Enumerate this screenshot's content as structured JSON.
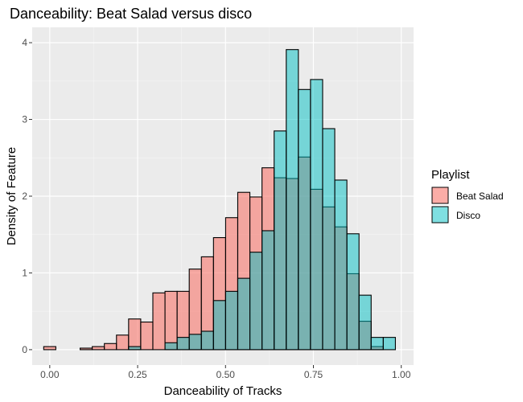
{
  "chart_data": {
    "type": "bar",
    "subtype": "overlapping-histogram",
    "title": "Danceability: Beat Salad versus disco",
    "xlabel": "Danceability of Tracks",
    "ylabel": "Density of Feature",
    "xlim": [
      -0.05,
      1.035
    ],
    "ylim": [
      -0.2,
      4.2
    ],
    "x_ticks": [
      0.0,
      0.25,
      0.5,
      0.75,
      1.0
    ],
    "x_tick_labels": [
      "0.00",
      "0.25",
      "0.50",
      "0.75",
      "1.00"
    ],
    "y_ticks": [
      0,
      1,
      2,
      3,
      4
    ],
    "y_tick_labels": [
      "0",
      "1",
      "2",
      "3",
      "4"
    ],
    "bin_width": 0.0345,
    "bin_starts": [
      -0.0172,
      0.0173,
      0.0518,
      0.0863,
      0.1208,
      0.1553,
      0.1898,
      0.2243,
      0.2588,
      0.2933,
      0.3278,
      0.3623,
      0.3968,
      0.4313,
      0.4658,
      0.5003,
      0.5348,
      0.5693,
      0.6038,
      0.6383,
      0.6728,
      0.7073,
      0.7418,
      0.7763,
      0.8108,
      0.8453,
      0.8798,
      0.9143,
      0.9488
    ],
    "grid": true,
    "legend": {
      "title": "Playlist",
      "position": "right"
    },
    "series": [
      {
        "name": "Beat Salad",
        "color": "#F8766D",
        "values": [
          0.04,
          0.0,
          0.0,
          0.02,
          0.04,
          0.08,
          0.19,
          0.4,
          0.36,
          0.74,
          0.76,
          0.76,
          1.05,
          1.21,
          1.46,
          1.72,
          2.05,
          1.99,
          2.37,
          2.24,
          2.23,
          2.51,
          2.09,
          1.86,
          1.6,
          0.99,
          0.37,
          0.04,
          0.0
        ]
      },
      {
        "name": "Disco",
        "color": "#00BFC4",
        "values": [
          0.0,
          0.0,
          0.0,
          0.0,
          0.0,
          0.0,
          0.0,
          0.04,
          0.0,
          0.0,
          0.09,
          0.16,
          0.2,
          0.24,
          0.64,
          0.76,
          0.93,
          1.27,
          1.55,
          2.85,
          3.91,
          3.39,
          3.52,
          2.88,
          2.21,
          1.51,
          0.71,
          0.16,
          0.16
        ]
      }
    ]
  }
}
